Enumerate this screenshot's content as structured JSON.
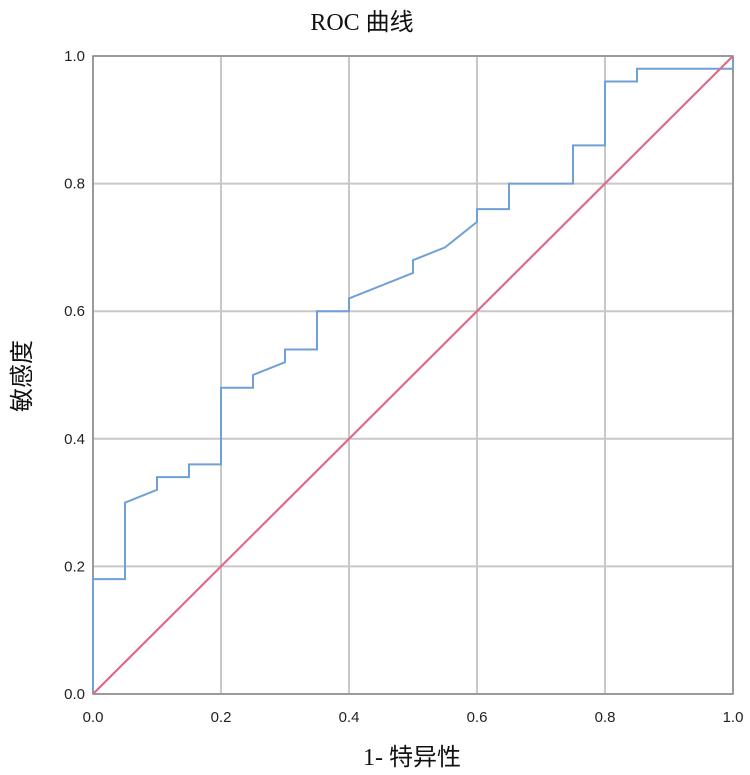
{
  "chart_data": {
    "type": "line",
    "title": "ROC 曲线",
    "xlabel": "1- 特异性",
    "ylabel": "敏感度",
    "xlim": [
      0.0,
      1.0
    ],
    "ylim": [
      0.0,
      1.0
    ],
    "x_ticks": [
      "0.0",
      "0.2",
      "0.4",
      "0.6",
      "0.8",
      "1.0"
    ],
    "y_ticks": [
      "0.0",
      "0.2",
      "0.4",
      "0.6",
      "0.8",
      "1.0"
    ],
    "grid": true,
    "legend": "none",
    "series": [
      {
        "color": "#6fa0d8",
        "points": [
          [
            0.0,
            0.0
          ],
          [
            0.0,
            0.18
          ],
          [
            0.05,
            0.18
          ],
          [
            0.05,
            0.3
          ],
          [
            0.1,
            0.32
          ],
          [
            0.1,
            0.34
          ],
          [
            0.15,
            0.34
          ],
          [
            0.15,
            0.36
          ],
          [
            0.2,
            0.36
          ],
          [
            0.2,
            0.48
          ],
          [
            0.25,
            0.48
          ],
          [
            0.25,
            0.5
          ],
          [
            0.3,
            0.52
          ],
          [
            0.3,
            0.54
          ],
          [
            0.35,
            0.54
          ],
          [
            0.35,
            0.6
          ],
          [
            0.4,
            0.6
          ],
          [
            0.4,
            0.62
          ],
          [
            0.5,
            0.66
          ],
          [
            0.5,
            0.68
          ],
          [
            0.55,
            0.7
          ],
          [
            0.6,
            0.74
          ],
          [
            0.6,
            0.76
          ],
          [
            0.65,
            0.76
          ],
          [
            0.65,
            0.8
          ],
          [
            0.75,
            0.8
          ],
          [
            0.75,
            0.86
          ],
          [
            0.8,
            0.86
          ],
          [
            0.8,
            0.96
          ],
          [
            0.85,
            0.96
          ],
          [
            0.85,
            0.98
          ],
          [
            1.0,
            0.98
          ],
          [
            1.0,
            1.0
          ]
        ]
      },
      {
        "color": "#e06b85",
        "points": [
          [
            0.0,
            0.0
          ],
          [
            1.0,
            1.0
          ]
        ]
      }
    ]
  }
}
